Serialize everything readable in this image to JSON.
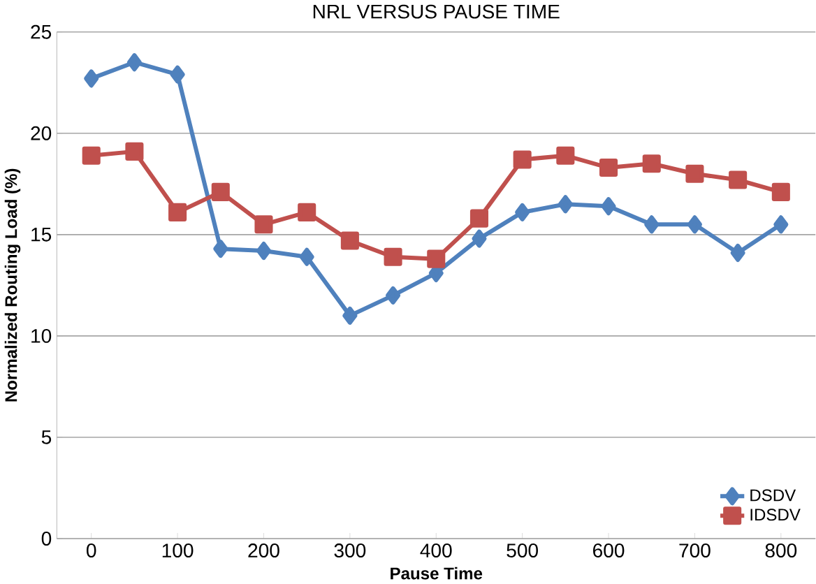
{
  "chart_data": {
    "type": "line",
    "title": "NRL VERSUS PAUSE TIME",
    "xlabel": "Pause Time",
    "ylabel": "Normalized Routing Load (%)",
    "x": [
      0,
      50,
      100,
      150,
      200,
      250,
      300,
      350,
      400,
      450,
      500,
      550,
      600,
      650,
      700,
      750,
      800
    ],
    "series": [
      {
        "name": "DSDV",
        "color": "#4f81bd",
        "marker": "diamond",
        "values": [
          22.7,
          23.5,
          22.9,
          14.3,
          14.2,
          13.9,
          11.0,
          12.0,
          13.1,
          14.8,
          16.1,
          16.5,
          16.4,
          15.5,
          15.5,
          14.1,
          15.5
        ]
      },
      {
        "name": "IDSDV",
        "color": "#c0504d",
        "marker": "square",
        "values": [
          18.9,
          19.1,
          16.1,
          17.1,
          15.5,
          16.1,
          14.7,
          13.9,
          13.8,
          15.8,
          18.7,
          18.9,
          18.3,
          18.5,
          18.0,
          17.7,
          17.1
        ]
      }
    ],
    "xlim": [
      -40,
      840
    ],
    "xticks": [
      0,
      100,
      200,
      300,
      400,
      500,
      600,
      700,
      800
    ],
    "ylim": [
      0,
      25
    ],
    "yticks": [
      0,
      5,
      10,
      15,
      20,
      25
    ],
    "grid": "y",
    "legend": "bottom right"
  }
}
